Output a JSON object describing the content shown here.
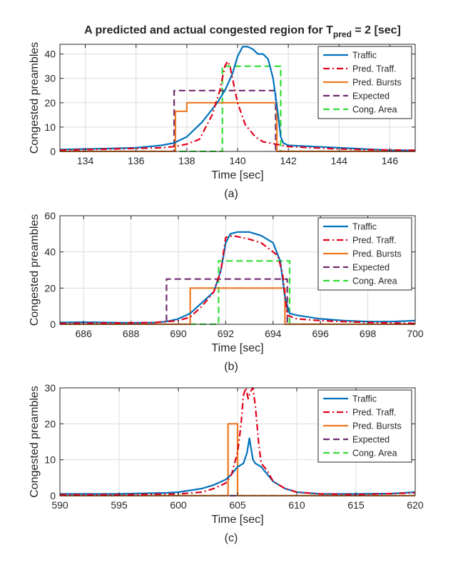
{
  "figure_title": {
    "main": "A predicted and actual congested region for T",
    "sub": "pred",
    "tail": " = 2 [sec]"
  },
  "chart_data": [
    {
      "type": "line",
      "panel_label": "(a)",
      "xlabel": "Time [sec]",
      "ylabel": "Congested preambles",
      "xlim": [
        133,
        147
      ],
      "ylim": [
        0,
        44
      ],
      "xticks": [
        134,
        136,
        138,
        140,
        142,
        144,
        146
      ],
      "yticks": [
        0,
        10,
        20,
        30,
        40
      ],
      "grid": true,
      "legend": "top-right",
      "series": [
        {
          "name": "Traffic",
          "color": "#0072BD",
          "style": "solid",
          "x": [
            133,
            134,
            135,
            136,
            136.5,
            137,
            137.5,
            138,
            138.3,
            138.6,
            138.9,
            139.2,
            139.5,
            139.8,
            140.0,
            140.2,
            140.4,
            140.6,
            140.8,
            141.0,
            141.2,
            141.4,
            141.6,
            141.7,
            141.8,
            142,
            143,
            144,
            145,
            146,
            147
          ],
          "y": [
            0.8,
            1.0,
            1.2,
            1.5,
            2.0,
            2.5,
            3.5,
            6,
            9,
            12,
            16,
            20,
            25,
            32,
            39,
            43,
            43,
            42,
            40,
            40,
            38,
            30,
            15,
            6,
            3.5,
            2.5,
            2.0,
            1.5,
            1.0,
            0.5,
            0.4
          ]
        },
        {
          "name": "Pred. Traff.",
          "color": "#E2001A",
          "style": "dashdot",
          "x": [
            133,
            135,
            137,
            137.5,
            138,
            138.5,
            139,
            139.3,
            139.5,
            139.6,
            139.7,
            139.8,
            140,
            140.3,
            140.7,
            141,
            141.5,
            142,
            143,
            144,
            145,
            147
          ],
          "y": [
            0.5,
            1.0,
            1.5,
            2.0,
            3.0,
            5.0,
            15,
            25,
            35,
            37,
            35,
            30,
            20,
            11,
            6,
            4,
            3,
            2,
            1.5,
            1.0,
            0.7,
            0.5
          ]
        },
        {
          "name": "Pred. Bursts",
          "color": "#EE7722",
          "style": "solid",
          "x": [
            133,
            137.55,
            137.55,
            138.0,
            138.0,
            141.55,
            141.55,
            147
          ],
          "y": [
            0,
            0,
            16.5,
            16.5,
            20,
            20,
            0,
            0
          ]
        },
        {
          "name": "Expected",
          "color": "#6E2C6E",
          "style": "dashed",
          "x": [
            133,
            137.5,
            137.5,
            141.5,
            141.5,
            147
          ],
          "y": [
            0,
            0,
            25,
            25,
            0,
            0
          ]
        },
        {
          "name": "Cong. Area",
          "color": "#33DD33",
          "style": "dashed",
          "x": [
            133,
            139.4,
            139.4,
            141.7,
            141.7,
            147
          ],
          "y": [
            0,
            0,
            35,
            35,
            0,
            0
          ]
        }
      ]
    },
    {
      "type": "line",
      "panel_label": "(b)",
      "xlabel": "Time [sec]",
      "ylabel": "Congested preambles",
      "xlim": [
        685,
        700
      ],
      "ylim": [
        0,
        60
      ],
      "xticks": [
        686,
        688,
        690,
        692,
        694,
        696,
        698,
        700
      ],
      "yticks": [
        0,
        20,
        40,
        60
      ],
      "grid": true,
      "legend": "top-right",
      "series": [
        {
          "name": "Traffic",
          "color": "#0072BD",
          "style": "solid",
          "x": [
            685,
            686,
            687,
            688,
            689,
            689.5,
            690,
            690.5,
            691,
            691.5,
            691.8,
            692,
            692.2,
            692.5,
            693,
            693.5,
            694,
            694.3,
            694.5,
            694.7,
            695,
            696,
            697,
            698,
            699,
            700
          ],
          "y": [
            1.0,
            1.2,
            1.0,
            0.8,
            1.0,
            1.5,
            3,
            6,
            12,
            18,
            30,
            45,
            50,
            51,
            51,
            49,
            45,
            35,
            15,
            6,
            5,
            3,
            2,
            1.5,
            1.5,
            2.0
          ]
        },
        {
          "name": "Pred. Traff.",
          "color": "#E2001A",
          "style": "dashdot",
          "x": [
            685,
            688,
            689,
            690,
            690.5,
            691,
            691.5,
            691.8,
            692,
            692.3,
            693,
            693.5,
            694,
            694.2,
            694.4,
            694.6,
            695,
            696,
            697,
            698,
            700
          ],
          "y": [
            0.5,
            0.8,
            1.0,
            2.0,
            4,
            10,
            18,
            30,
            48,
            49,
            47,
            45,
            40,
            38,
            28,
            5,
            3,
            2,
            1.5,
            1.0,
            0.5
          ]
        },
        {
          "name": "Pred. Bursts",
          "color": "#EE7722",
          "style": "solid",
          "x": [
            685,
            690.5,
            690.5,
            694.5,
            694.5,
            700
          ],
          "y": [
            0,
            0,
            20,
            20,
            0,
            0
          ]
        },
        {
          "name": "Expected",
          "color": "#6E2C6E",
          "style": "dashed",
          "x": [
            685,
            689.5,
            689.5,
            694.6,
            694.6,
            700
          ],
          "y": [
            0,
            0,
            25,
            25,
            0,
            0
          ]
        },
        {
          "name": "Cong. Area",
          "color": "#33DD33",
          "style": "dashed",
          "x": [
            685,
            691.7,
            691.7,
            694.7,
            694.7,
            700
          ],
          "y": [
            0,
            0,
            35,
            35,
            0,
            0
          ]
        }
      ]
    },
    {
      "type": "line",
      "panel_label": "(c)",
      "xlabel": "Time [sec]",
      "ylabel": "Congested preambles",
      "xlim": [
        590,
        620
      ],
      "ylim": [
        0,
        30
      ],
      "xticks": [
        590,
        595,
        600,
        605,
        610,
        615,
        620
      ],
      "yticks": [
        0,
        10,
        20,
        30
      ],
      "grid": true,
      "legend": "top-right",
      "series": [
        {
          "name": "Traffic",
          "color": "#0072BD",
          "style": "solid",
          "x": [
            590,
            595,
            599,
            600,
            601,
            602,
            603,
            604,
            604.5,
            605,
            605.5,
            605.8,
            606,
            606.3,
            606.5,
            607,
            607.5,
            608,
            609,
            610,
            612,
            615,
            618,
            620
          ],
          "y": [
            0.5,
            0.5,
            0.8,
            1.0,
            1.5,
            2.0,
            3.0,
            4.5,
            6,
            8,
            9,
            12,
            16,
            10,
            9,
            8,
            6,
            4,
            2,
            1,
            0.5,
            0.5,
            0.6,
            1.0
          ]
        },
        {
          "name": "Pred. Traff.",
          "color": "#E2001A",
          "style": "dashdot",
          "x": [
            590,
            595,
            600,
            602,
            603,
            604,
            604.5,
            605,
            605.3,
            605.5,
            605.7,
            605.9,
            606.1,
            606.3,
            606.5,
            606.8,
            607,
            607.5,
            608,
            609,
            610,
            612,
            615,
            620
          ],
          "y": [
            0.3,
            0.3,
            0.5,
            1.0,
            2.0,
            3.5,
            6,
            12,
            20,
            28,
            30,
            27,
            29,
            30,
            25,
            14,
            9,
            7,
            4,
            2,
            1,
            0.5,
            0.3,
            0.8
          ]
        },
        {
          "name": "Pred. Bursts",
          "color": "#EE7722",
          "style": "solid",
          "x": [
            590,
            604.2,
            604.2,
            605.0,
            605.0,
            620
          ],
          "y": [
            0,
            0,
            20,
            20,
            0,
            0
          ]
        },
        {
          "name": "Expected",
          "color": "#6E2C6E",
          "style": "dashed",
          "x": [
            590,
            620
          ],
          "y": [
            0,
            0
          ]
        },
        {
          "name": "Cong. Area",
          "color": "#33DD33",
          "style": "dashed",
          "x": [
            590,
            620
          ],
          "y": [
            0,
            0
          ]
        }
      ]
    }
  ]
}
